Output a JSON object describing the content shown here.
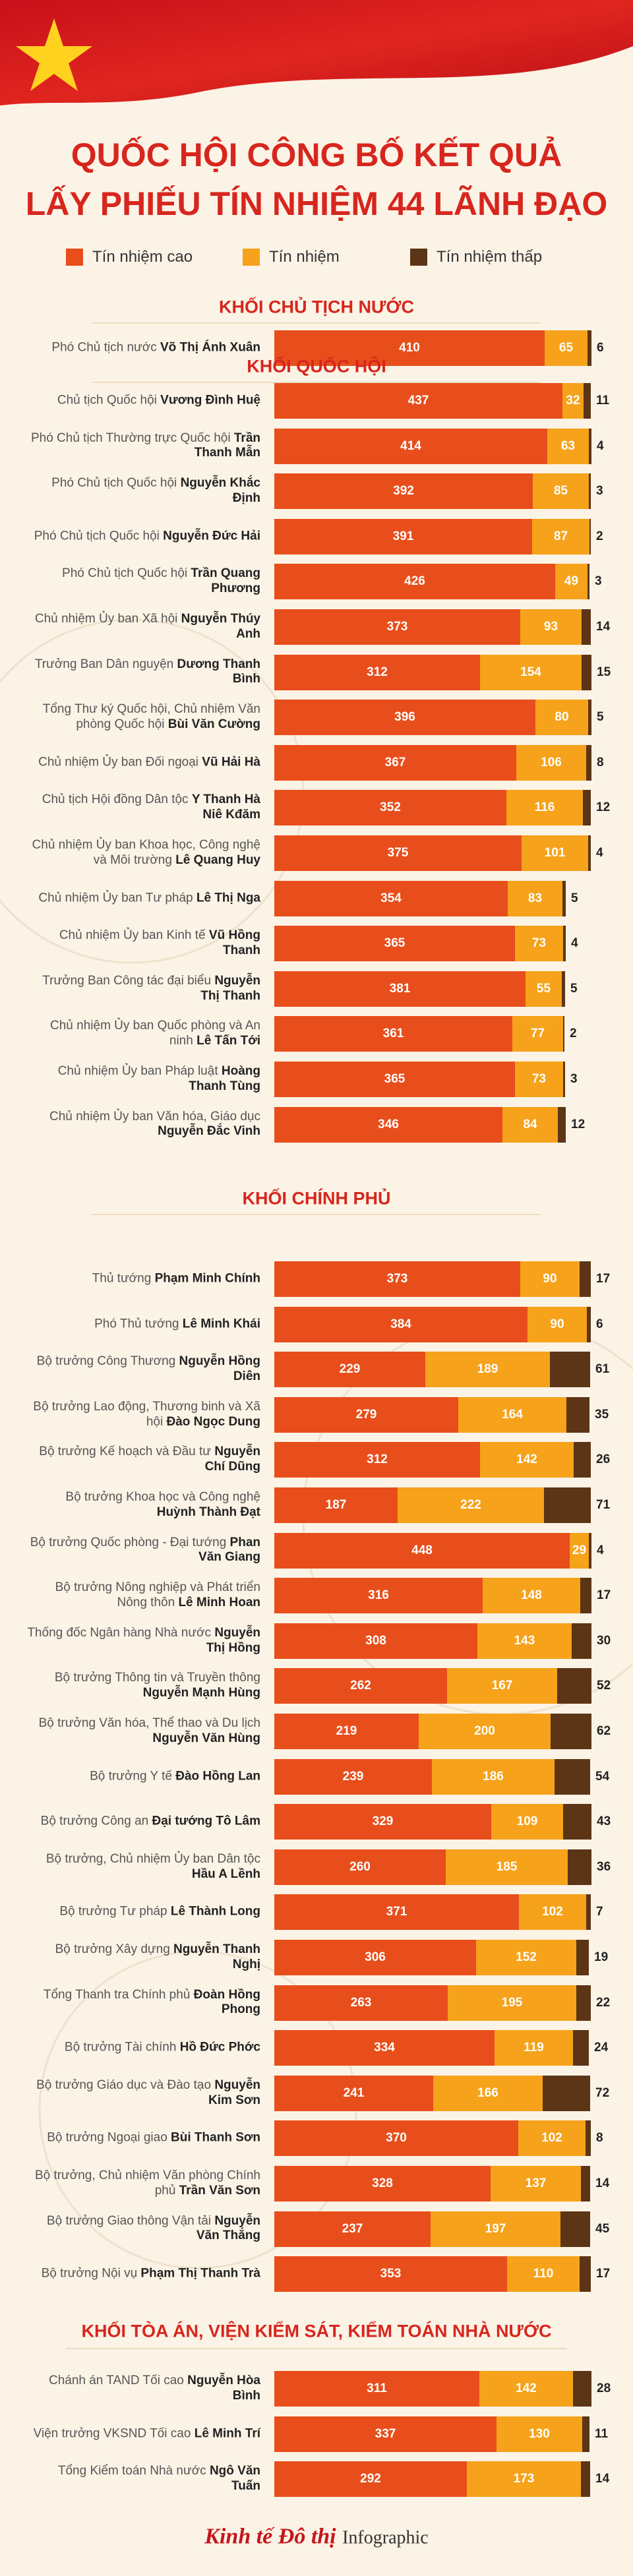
{
  "chart_data": {
    "type": "stacked-barh",
    "title": [
      "QUỐC HỘI CÔNG BỐ KẾT QUẢ",
      "LẤY PHIẾU TÍN NHIỆM 44 LÃNH ĐẠO"
    ],
    "series": [
      {
        "name": "Tín nhiệm cao",
        "color": "#e84e1b"
      },
      {
        "name": "Tín nhiệm",
        "color": "#f6a21a"
      },
      {
        "name": "Tín nhiệm thấp",
        "color": "#5b3516"
      }
    ],
    "groups": [
      {
        "title": "KHỐI CHỦ TỊCH NƯỚC",
        "rows": [
          {
            "role": "Phó Chủ tịch nước",
            "name": "Võ Thị Ánh Xuân",
            "values": [
              410,
              65,
              6
            ]
          }
        ]
      },
      {
        "title": "KHỐI QUỐC HỘI",
        "rows": [
          {
            "role": "Chủ tịch Quốc hội",
            "name": "Vương Đình Huệ",
            "values": [
              437,
              32,
              11
            ]
          },
          {
            "role": "Phó Chủ tịch Thường trực Quốc hội",
            "name": "Trần Thanh Mẫn",
            "values": [
              414,
              63,
              4
            ]
          },
          {
            "role": "Phó Chủ tịch Quốc hội",
            "name": "Nguyễn Khắc Định",
            "values": [
              392,
              85,
              3
            ]
          },
          {
            "role": "Phó Chủ tịch Quốc hội",
            "name": "Nguyễn Đức Hải",
            "values": [
              391,
              87,
              2
            ]
          },
          {
            "role": "Phó Chủ tịch Quốc hội",
            "name": "Trần Quang Phương",
            "values": [
              426,
              49,
              3
            ]
          },
          {
            "role": "Chủ nhiệm Ủy ban Xã hội",
            "name": "Nguyễn Thúy Anh",
            "values": [
              373,
              93,
              14
            ]
          },
          {
            "role": "Trưởng Ban Dân nguyện",
            "name": "Dương Thanh Bình",
            "values": [
              312,
              154,
              15
            ]
          },
          {
            "role": "Tổng Thư ký Quốc hội, Chủ nhiệm Văn phòng Quốc hội",
            "name": "Bùi Văn Cường",
            "values": [
              396,
              80,
              5
            ]
          },
          {
            "role": "Chủ nhiệm Ủy ban Đối ngoại",
            "name": "Vũ Hải Hà",
            "values": [
              367,
              106,
              8
            ]
          },
          {
            "role": "Chủ tịch Hội đồng Dân tộc",
            "name": "Y Thanh Hà Niê Kđăm",
            "values": [
              352,
              116,
              12
            ]
          },
          {
            "role": "Chủ nhiệm Ủy ban Khoa học, Công nghệ và Môi trường",
            "name": "Lê Quang Huy",
            "values": [
              375,
              101,
              4
            ]
          },
          {
            "role": "Chủ nhiệm Ủy ban Tư pháp",
            "name": "Lê Thị Nga",
            "values": [
              354,
              83,
              5
            ]
          },
          {
            "role": "Chủ nhiệm Ủy ban Kinh tế",
            "name": "Vũ Hồng Thanh",
            "values": [
              365,
              73,
              4
            ]
          },
          {
            "role": "Trưởng Ban Công tác đại biểu",
            "name": "Nguyễn Thị Thanh",
            "values": [
              381,
              55,
              5
            ]
          },
          {
            "role": "Chủ nhiệm Ủy ban Quốc phòng và An ninh",
            "name": "Lê Tấn Tới",
            "values": [
              361,
              77,
              2
            ]
          },
          {
            "role": "Chủ nhiệm Ủy ban Pháp luật",
            "name": "Hoàng Thanh Tùng",
            "values": [
              365,
              73,
              3
            ]
          },
          {
            "role": "Chủ nhiệm Ủy ban Văn hóa, Giáo dục",
            "name": "Nguyễn Đắc Vinh",
            "values": [
              346,
              84,
              12
            ]
          }
        ]
      },
      {
        "title": "KHỐI CHÍNH PHỦ",
        "rows": [
          {
            "role": "Thủ tướng",
            "name": "Phạm Minh Chính",
            "values": [
              373,
              90,
              17
            ]
          },
          {
            "role": "Phó Thủ tướng",
            "name": "Lê Minh Khái",
            "values": [
              384,
              90,
              6
            ]
          },
          {
            "role": "Bộ trưởng Công Thương",
            "name": "Nguyễn Hồng Diên",
            "values": [
              229,
              189,
              61
            ]
          },
          {
            "role": "Bộ trưởng Lao động, Thương binh và Xã hội",
            "name": "Đào Ngọc Dung",
            "values": [
              279,
              164,
              35
            ]
          },
          {
            "role": "Bộ trưởng Kế hoạch và Đầu tư",
            "name": "Nguyễn Chí Dũng",
            "values": [
              312,
              142,
              26
            ]
          },
          {
            "role": "Bộ trưởng Khoa học và Công nghệ",
            "name": "Huỳnh Thành Đạt",
            "values": [
              187,
              222,
              71
            ]
          },
          {
            "role": "Bộ trưởng Quốc phòng - Đại tướng",
            "name": "Phan Văn Giang",
            "values": [
              448,
              29,
              4
            ]
          },
          {
            "role": "Bộ trưởng Nông nghiệp và Phát triển Nông thôn",
            "name": "Lê Minh Hoan",
            "values": [
              316,
              148,
              17
            ]
          },
          {
            "role": "Thống đốc Ngân hàng Nhà nước",
            "name": "Nguyễn Thị Hồng",
            "values": [
              308,
              143,
              30
            ]
          },
          {
            "role": "Bộ trưởng Thông tin và Truyền thông",
            "name": "Nguyễn Mạnh Hùng",
            "values": [
              262,
              167,
              52
            ]
          },
          {
            "role": "Bộ trưởng Văn hóa, Thể thao và Du lịch",
            "name": "Nguyễn Văn Hùng",
            "values": [
              219,
              200,
              62
            ]
          },
          {
            "role": "Bộ trưởng Y tế",
            "name": "Đào Hồng Lan",
            "values": [
              239,
              186,
              54
            ]
          },
          {
            "role": "Bộ trưởng Công an",
            "name": "Đại tướng Tô Lâm",
            "values": [
              329,
              109,
              43
            ]
          },
          {
            "role": "Bộ trưởng, Chủ nhiệm Ủy ban Dân tộc",
            "name": "Hầu A Lềnh",
            "values": [
              260,
              185,
              36
            ]
          },
          {
            "role": "Bộ trưởng Tư pháp",
            "name": "Lê Thành Long",
            "values": [
              371,
              102,
              7
            ]
          },
          {
            "role": "Bộ trưởng Xây dựng",
            "name": "Nguyễn Thanh Nghị",
            "values": [
              306,
              152,
              19
            ]
          },
          {
            "role": "Tổng Thanh tra Chính phủ",
            "name": "Đoàn Hồng Phong",
            "values": [
              263,
              195,
              22
            ]
          },
          {
            "role": "Bộ trưởng Tài chính",
            "name": "Hồ Đức Phớc",
            "values": [
              334,
              119,
              24
            ]
          },
          {
            "role": "Bộ trưởng Giáo dục và Đào tạo",
            "name": "Nguyễn Kim Sơn",
            "values": [
              241,
              166,
              72
            ]
          },
          {
            "role": "Bộ trưởng Ngoại giao",
            "name": "Bùi Thanh Sơn",
            "values": [
              370,
              102,
              8
            ]
          },
          {
            "role": "Bộ trưởng, Chủ nhiệm Văn phòng Chính phủ",
            "name": "Trần Văn Sơn",
            "values": [
              328,
              137,
              14
            ]
          },
          {
            "role": "Bộ trưởng Giao thông Vận tải",
            "name": "Nguyễn Văn Thắng",
            "values": [
              237,
              197,
              45
            ]
          },
          {
            "role": "Bộ trưởng Nội vụ",
            "name": "Phạm Thị Thanh Trà",
            "values": [
              353,
              110,
              17
            ]
          }
        ]
      },
      {
        "title": "KHỐI TÒA ÁN, VIỆN KIỂM SÁT, KIỂM TOÁN NHÀ NƯỚC",
        "rows": [
          {
            "role": "Chánh án TAND Tối cao",
            "name": "Nguyễn Hòa Bình",
            "values": [
              311,
              142,
              28
            ]
          },
          {
            "role": "Viện trưởng VKSND Tối cao",
            "name": "Lê Minh Trí",
            "values": [
              337,
              130,
              11
            ]
          },
          {
            "role": "Tổng Kiểm toán Nhà nước",
            "name": "Ngô Văn Tuấn",
            "values": [
              292,
              173,
              14
            ]
          }
        ]
      }
    ]
  },
  "footer": {
    "logo": "Kinh tế Đô thị",
    "label": "Infographic"
  }
}
